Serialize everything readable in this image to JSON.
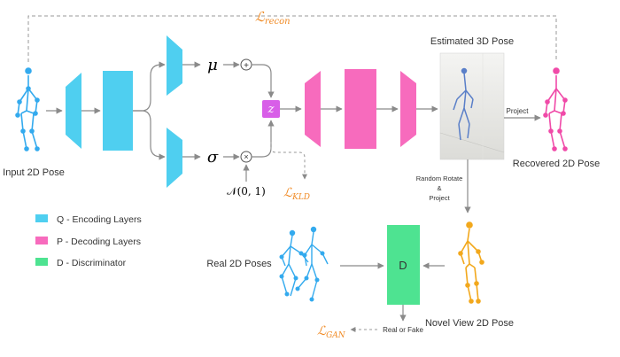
{
  "colors": {
    "encoder": "#4fcff0",
    "decoder": "#f76bbd",
    "discriminator": "#4ee391",
    "z_box": "#d85ee8",
    "loss": "#f08a24",
    "arrow": "#8a8a8a",
    "skeleton_input": "#33aaee",
    "skeleton_recovered": "#f04aa8",
    "skeleton_novel": "#f2a81c",
    "skeleton_real": "#33aaee"
  },
  "labels": {
    "input_pose": "Input 2D Pose",
    "estimated_pose": "Estimated 3D Pose",
    "recovered_pose": "Recovered 2D Pose",
    "project": "Project",
    "random_rotate_line1": "Random Rotate",
    "random_rotate_line2": "&",
    "random_rotate_line3": "Project",
    "real_poses": "Real 2D Poses",
    "novel_view": "Novel View 2D Pose",
    "real_or_fake": "Real or Fake",
    "disc_letter": "D"
  },
  "math": {
    "mu": "μ",
    "sigma": "σ",
    "z": "z",
    "normal_dist": "𝒩(0, 1)",
    "plus": "+",
    "times": "×"
  },
  "losses": {
    "recon_symbol": "ℒ",
    "recon_sub": "recon",
    "kld_symbol": "ℒ",
    "kld_sub": "KLD",
    "gan_symbol": "ℒ",
    "gan_sub": "GAN"
  },
  "legend": [
    {
      "text": "Q - Encoding Layers",
      "color_key": "encoder"
    },
    {
      "text": "P - Decoding Layers",
      "color_key": "decoder"
    },
    {
      "text": "D - Discriminator",
      "color_key": "discriminator"
    }
  ]
}
